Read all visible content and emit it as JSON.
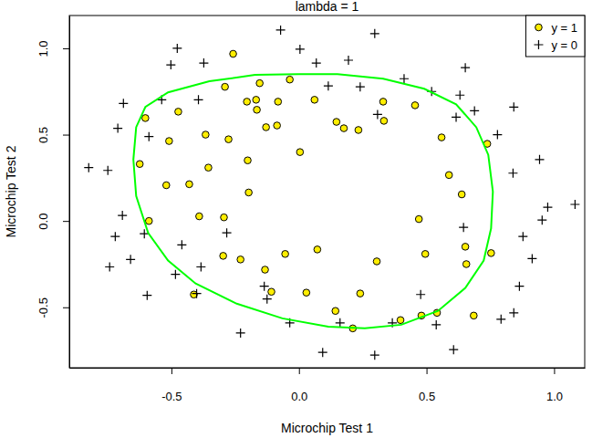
{
  "chart_data": {
    "type": "scatter",
    "title": "lambda = 1",
    "xlabel": "Microchip Test 1",
    "ylabel": "Microchip Test 2",
    "xlim": [
      -0.9,
      1.12
    ],
    "ylim": [
      -0.85,
      1.19
    ],
    "xticks": [
      -0.5,
      {
        "value": 0,
        "label": "0.0"
      },
      0.5,
      {
        "value": 1,
        "label": "1.0"
      }
    ],
    "yticks": [
      -0.5,
      {
        "value": 0,
        "label": "0.0"
      },
      0.5,
      {
        "value": 1,
        "label": "1.0"
      }
    ],
    "legend": "topright",
    "series": [
      {
        "name": "y = 1",
        "color": "#ffee00",
        "marker": "circle",
        "x": [
          -0.258,
          -0.036,
          -0.154,
          -0.29,
          -0.602,
          -0.473,
          -0.204,
          -0.168,
          -0.082,
          -0.165,
          0.061,
          0.33,
          0.455,
          0.147,
          0.176,
          0.333,
          0.233,
          -0.129,
          -0.086,
          -0.366,
          -0.276,
          -0.509,
          0.559,
          0.738,
          -0.624,
          0.004,
          -0.201,
          -0.355,
          0.588,
          -0.52,
          -0.43,
          -0.197,
          0.638,
          -0.588,
          -0.391,
          -0.294,
          0.47,
          0.652,
          -0.054,
          0.072,
          0.495,
          0.753,
          -0.297,
          -0.229,
          0.305,
          0.656,
          -0.133,
          -0.412,
          -0.108,
          0.029,
          0.24,
          0.143,
          0.398,
          0.48,
          0.541,
          0.685,
          0.211
        ],
        "values": [
          0.968,
          0.819,
          0.798,
          0.777,
          0.596,
          0.633,
          0.691,
          0.702,
          0.691,
          0.644,
          0.702,
          0.691,
          0.67,
          0.574,
          0.537,
          0.58,
          0.527,
          0.543,
          0.553,
          0.5,
          0.473,
          0.463,
          0.484,
          0.447,
          0.33,
          0.399,
          0.351,
          0.309,
          0.266,
          0.207,
          0.213,
          0.165,
          0.154,
          0.0,
          0.027,
          0.021,
          0.011,
          -0.149,
          -0.191,
          -0.165,
          -0.191,
          -0.186,
          -0.202,
          -0.223,
          -0.234,
          -0.25,
          -0.282,
          -0.426,
          -0.41,
          -0.415,
          -0.42,
          -0.521,
          -0.574,
          -0.548,
          -0.532,
          -0.548,
          -0.622
        ]
      },
      {
        "name": "y = 0",
        "color": "#000000",
        "marker": "plus",
        "x": [
          -0.072,
          -0.477,
          -0.502,
          0.004,
          0.297,
          -0.373,
          0.068,
          0.194,
          0.652,
          0.412,
          -0.688,
          -0.538,
          -0.394,
          0.115,
          0.24,
          0.52,
          0.631,
          0.688,
          0.842,
          -0.71,
          -0.588,
          0.308,
          0.616,
          0.778,
          0.943,
          -0.824,
          -0.749,
          0.839,
          -0.692,
          0.975,
          1.082,
          0.953,
          0.645,
          -0.606,
          -0.72,
          0.878,
          -0.459,
          -0.283,
          -0.66,
          -0.742,
          0.914,
          -0.384,
          -0.484,
          -0.595,
          -0.401,
          -0.136,
          -0.125,
          0.477,
          0.864,
          0.842,
          0.792,
          -0.229,
          -0.036,
          0.161,
          0.366,
          0.538,
          0.093,
          0.297,
          0.606
        ],
        "values": [
          1.106,
          1.0,
          0.904,
          0.995,
          1.085,
          0.915,
          0.915,
          0.931,
          0.888,
          0.824,
          0.681,
          0.702,
          0.702,
          0.782,
          0.777,
          0.75,
          0.729,
          0.638,
          0.66,
          0.537,
          0.489,
          0.617,
          0.601,
          0.5,
          0.356,
          0.309,
          0.293,
          0.277,
          0.032,
          0.08,
          0.096,
          0.005,
          -0.037,
          -0.074,
          -0.09,
          -0.09,
          -0.138,
          -0.069,
          -0.223,
          -0.266,
          -0.218,
          -0.266,
          -0.309,
          -0.431,
          -0.42,
          -0.378,
          -0.452,
          -0.426,
          -0.378,
          -0.532,
          -0.569,
          -0.649,
          -0.59,
          -0.59,
          -0.59,
          -0.601,
          -0.761,
          -0.777,
          -0.745
        ]
      },
      {
        "type": "line",
        "color": "#00ff00",
        "x": [
          0.0,
          0.151,
          0.33,
          0.491,
          0.616,
          0.695,
          0.742,
          0.76,
          0.753,
          0.724,
          0.652,
          0.545,
          0.401,
          0.258,
          0.115,
          -0.065,
          -0.244,
          -0.405,
          -0.513,
          -0.591,
          -0.638,
          -0.649,
          -0.638,
          -0.602,
          -0.513,
          -0.351,
          -0.172,
          0.0
        ],
        "values": [
          0.851,
          0.851,
          0.824,
          0.766,
          0.676,
          0.543,
          0.383,
          0.17,
          -0.043,
          -0.229,
          -0.388,
          -0.521,
          -0.601,
          -0.622,
          -0.612,
          -0.564,
          -0.479,
          -0.362,
          -0.229,
          -0.069,
          0.144,
          0.356,
          0.543,
          0.66,
          0.745,
          0.809,
          0.846,
          0.851
        ]
      }
    ]
  }
}
